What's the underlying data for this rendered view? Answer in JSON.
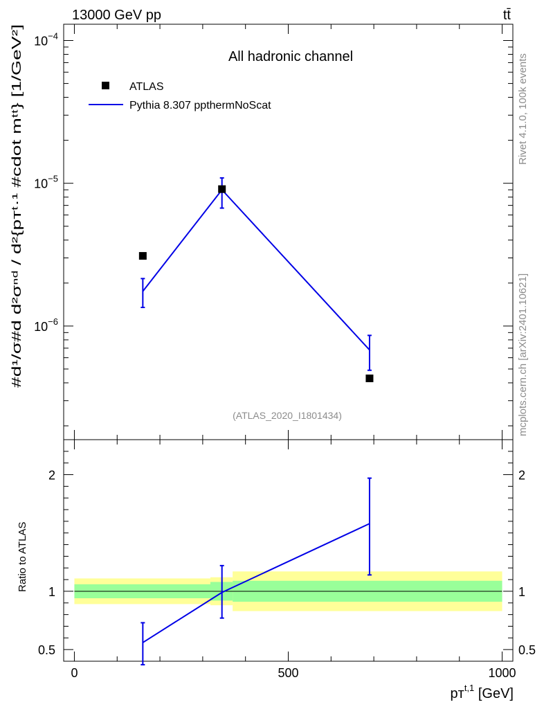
{
  "header": {
    "energy": "13000 GeV pp",
    "process": "tt̄"
  },
  "colors": {
    "data": "#000000",
    "mc": "#0000e6",
    "band_inner": "#99ff99",
    "band_outer": "#ffff99",
    "grey_text": "#8c8c8c"
  },
  "side_labels": {
    "rivet": "Rivet 4.1.0,  100k events",
    "mcplots": "mcplots.cern.ch [arXiv:2401.10621]"
  },
  "chart_data": [
    {
      "type": "line",
      "panel": "main",
      "title": "All hadronic channel",
      "analysis_id": "(ATLAS_2020_I1801434)",
      "ylabel": "#d¹/σ#d d²σⁿᵈ / d²{pᴛᵗ·¹ #cdot mᵗᵗ} [1/GeV²]",
      "yscale": "log",
      "ylim": [
        1.6e-07,
        0.00013
      ],
      "yticks": [
        {
          "value": 0.0001,
          "label": "10",
          "exp": "−4"
        },
        {
          "value": 1e-05,
          "label": "10",
          "exp": "−5"
        },
        {
          "value": 1e-06,
          "label": "10",
          "exp": "−6"
        }
      ],
      "legend": {
        "position": "top-left",
        "entries": [
          "ATLAS",
          "Pythia 8.307 ppthermNoScat"
        ]
      },
      "series": [
        {
          "name": "ATLAS",
          "style": "marker",
          "points": [
            {
              "x": 160,
              "y": 3.1e-06
            },
            {
              "x": 345,
              "y": 9.1e-06
            },
            {
              "x": 690,
              "y": 4.3e-07
            }
          ]
        },
        {
          "name": "Pythia 8.307 ppthermNoScat",
          "style": "line",
          "points": [
            {
              "x": 160,
              "y": 1.75e-06,
              "ylo": 1.35e-06,
              "yhi": 2.15e-06
            },
            {
              "x": 345,
              "y": 9e-06,
              "ylo": 6.7e-06,
              "yhi": 1.09e-05
            },
            {
              "x": 690,
              "y": 6.8e-07,
              "ylo": 4.9e-07,
              "yhi": 8.6e-07
            }
          ]
        }
      ]
    },
    {
      "type": "line",
      "panel": "ratio",
      "ylabel": "Ratio to ATLAS",
      "xlabel": "pᴛ",
      "xlabel_sup": "t,1",
      "xlabel_unit": " [GeV]",
      "xlim": [
        -25,
        1025
      ],
      "ylim": [
        0.4,
        2.3
      ],
      "xticks": [
        {
          "value": 0,
          "label": "0"
        },
        {
          "value": 500,
          "label": "500"
        },
        {
          "value": 1000,
          "label": "1000"
        }
      ],
      "yticks": [
        {
          "value": 0.5,
          "label": "0.5"
        },
        {
          "value": 1,
          "label": "1"
        },
        {
          "value": 2,
          "label": "2"
        }
      ],
      "bands": [
        {
          "xlo": 0,
          "xhi": 318,
          "inner": [
            0.94,
            1.06
          ],
          "outer": [
            0.89,
            1.11
          ]
        },
        {
          "xlo": 318,
          "xhi": 370,
          "inner": [
            0.92,
            1.08
          ],
          "outer": [
            0.88,
            1.12
          ]
        },
        {
          "xlo": 370,
          "xhi": 1000,
          "inner": [
            0.91,
            1.09
          ],
          "outer": [
            0.83,
            1.17
          ]
        }
      ],
      "series": [
        {
          "name": "Pythia 8.307 ppthermNoScat",
          "style": "line",
          "points": [
            {
              "x": 160,
              "y": 0.56,
              "ylo": 0.37,
              "yhi": 0.73
            },
            {
              "x": 345,
              "y": 0.99,
              "ylo": 0.77,
              "yhi": 1.22
            },
            {
              "x": 690,
              "y": 1.58,
              "ylo": 1.14,
              "yhi": 1.97
            }
          ]
        }
      ]
    }
  ]
}
